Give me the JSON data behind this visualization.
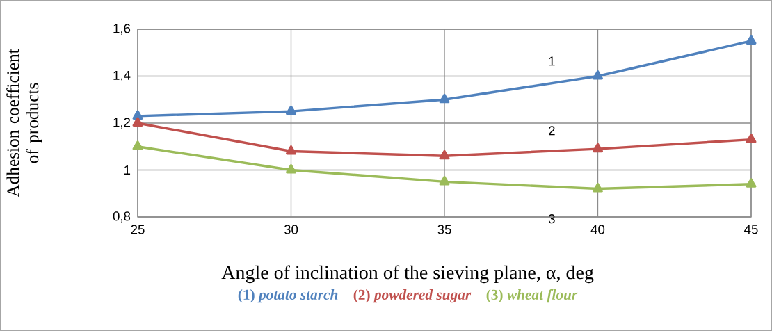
{
  "chart_data": {
    "type": "line",
    "xlabel": "Angle of inclination of the sieving plane, α, deg",
    "ylabel": "Adhesion coefficient of products",
    "x": [
      25,
      30,
      35,
      40,
      45
    ],
    "series": [
      {
        "name": "(1) *potato starch*",
        "color": "#4f81bd",
        "values": [
          1.23,
          1.25,
          1.3,
          1.4,
          1.55
        ]
      },
      {
        "name": "(2) *powdered sugar*",
        "color": "#c0504d",
        "values": [
          1.2,
          1.08,
          1.06,
          1.09,
          1.13
        ]
      },
      {
        "name": "(3) *wheat flour*",
        "color": "#9bbb59",
        "values": [
          1.1,
          1.0,
          0.95,
          0.92,
          0.94
        ]
      }
    ],
    "xlim": [
      25,
      45
    ],
    "xticks": [
      25,
      30,
      35,
      40,
      45
    ],
    "ylim": [
      0.8,
      1.6
    ],
    "yticks": [
      {
        "value": 0.8,
        "label": "0,8"
      },
      1,
      {
        "value": 1.2,
        "label": "1,2"
      },
      {
        "value": 1.4,
        "label": "1,4"
      },
      {
        "value": 1.6,
        "label": "1,6"
      }
    ],
    "annotations": [
      "1",
      "2",
      "3"
    ],
    "grid": true,
    "legend": "bottom",
    "marker": "triangle",
    "line_style": "solid"
  }
}
